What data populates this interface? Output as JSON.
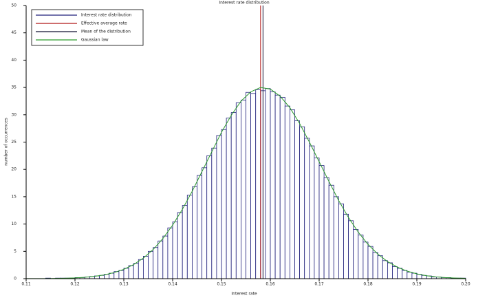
{
  "chart_data": {
    "type": "histogram",
    "title": "Interest rate distribution",
    "xlabel": "Interest rate",
    "ylabel": "number of occurrences",
    "series_name": "Interest rate distribution",
    "color": "#1f1f7a",
    "bins": [
      0.11,
      0.111,
      0.112,
      0.113,
      0.114,
      0.115,
      0.116,
      0.117,
      0.118,
      0.119,
      0.12,
      0.121,
      0.122,
      0.123,
      0.124,
      0.125,
      0.126,
      0.127,
      0.128,
      0.129,
      0.13,
      0.131,
      0.132,
      0.133,
      0.134,
      0.135,
      0.136,
      0.137,
      0.138,
      0.139,
      0.14,
      0.141,
      0.142,
      0.143,
      0.144,
      0.145,
      0.146,
      0.147,
      0.148,
      0.149,
      0.15,
      0.151,
      0.152,
      0.153,
      0.154,
      0.155,
      0.156,
      0.157,
      0.158,
      0.159,
      0.16,
      0.161,
      0.162,
      0.163,
      0.164,
      0.165,
      0.166,
      0.167,
      0.168,
      0.169,
      0.17,
      0.171,
      0.172,
      0.173,
      0.174,
      0.175,
      0.176,
      0.177,
      0.178,
      0.179,
      0.18,
      0.181,
      0.182,
      0.183,
      0.184,
      0.185,
      0.186,
      0.187,
      0.188,
      0.189,
      0.19,
      0.191,
      0.192,
      0.193,
      0.194,
      0.195,
      0.196,
      0.197,
      0.198,
      0.199,
      0.2
    ],
    "values": [
      0,
      0,
      0,
      0,
      0.1,
      0,
      0.1,
      0.1,
      0.1,
      0.1,
      0.2,
      0.2,
      0.3,
      0.4,
      0.5,
      0.6,
      0.8,
      1.0,
      1.3,
      1.5,
      1.9,
      2.4,
      2.8,
      3.5,
      4.1,
      5.0,
      5.7,
      6.9,
      7.8,
      9.3,
      10.4,
      12.1,
      13.4,
      15.3,
      16.8,
      18.9,
      20.3,
      22.5,
      23.9,
      26.2,
      27.3,
      29.4,
      30.4,
      32.2,
      32.7,
      34.1,
      33.9,
      34.6,
      34.4,
      34.8,
      34.2,
      33.6,
      33.2,
      31.6,
      30.9,
      28.9,
      27.8,
      25.7,
      24.3,
      22.1,
      20.7,
      18.5,
      17.1,
      15.0,
      13.7,
      11.8,
      10.6,
      9.0,
      8.0,
      6.7,
      5.9,
      4.8,
      4.2,
      3.3,
      2.9,
      2.2,
      1.9,
      1.5,
      1.2,
      1.0,
      0.8,
      0.6,
      0.5,
      0.3,
      0.3,
      0.2,
      0.2,
      0.1,
      0.1,
      0.1
    ],
    "overlays": [
      {
        "type": "vline",
        "name": "Effective average rate",
        "color": "#b01818",
        "x": 0.158
      },
      {
        "type": "vline",
        "name": "Mean of the distribution",
        "color": "#101030",
        "x": 0.1585
      },
      {
        "type": "line",
        "name": "Gaussian law",
        "color": "#2a9a2a",
        "x": [
          0.11,
          0.112,
          0.114,
          0.116,
          0.118,
          0.12,
          0.122,
          0.124,
          0.126,
          0.128,
          0.13,
          0.132,
          0.134,
          0.136,
          0.138,
          0.14,
          0.142,
          0.144,
          0.146,
          0.148,
          0.15,
          0.152,
          0.154,
          0.156,
          0.158,
          0.16,
          0.162,
          0.164,
          0.166,
          0.168,
          0.17,
          0.172,
          0.174,
          0.176,
          0.178,
          0.18,
          0.182,
          0.184,
          0.186,
          0.188,
          0.19,
          0.192,
          0.194,
          0.196,
          0.198,
          0.2
        ],
        "values": [
          0.01,
          0.01,
          0.02,
          0.04,
          0.08,
          0.14,
          0.25,
          0.42,
          0.69,
          1.11,
          1.71,
          2.58,
          3.76,
          5.33,
          7.34,
          9.81,
          12.7,
          16.0,
          19.6,
          23.2,
          26.8,
          29.9,
          32.5,
          34.2,
          35.0,
          34.7,
          33.4,
          31.3,
          28.4,
          25.0,
          21.4,
          17.8,
          14.3,
          11.2,
          8.52,
          6.28,
          4.5,
          3.13,
          2.11,
          1.38,
          0.88,
          0.54,
          0.32,
          0.19,
          0.11,
          0.06
        ]
      }
    ],
    "xlim": [
      0.11,
      0.2
    ],
    "ylim": [
      0,
      50
    ],
    "xticks": [
      0.11,
      0.12,
      0.13,
      0.14,
      0.15,
      0.16,
      0.17,
      0.18,
      0.19,
      {
        "value": 0.2,
        "label": "0.20"
      }
    ],
    "yticks": [
      0,
      5,
      10,
      15,
      20,
      25,
      30,
      35,
      40,
      45,
      50
    ],
    "legend": "upper left"
  }
}
